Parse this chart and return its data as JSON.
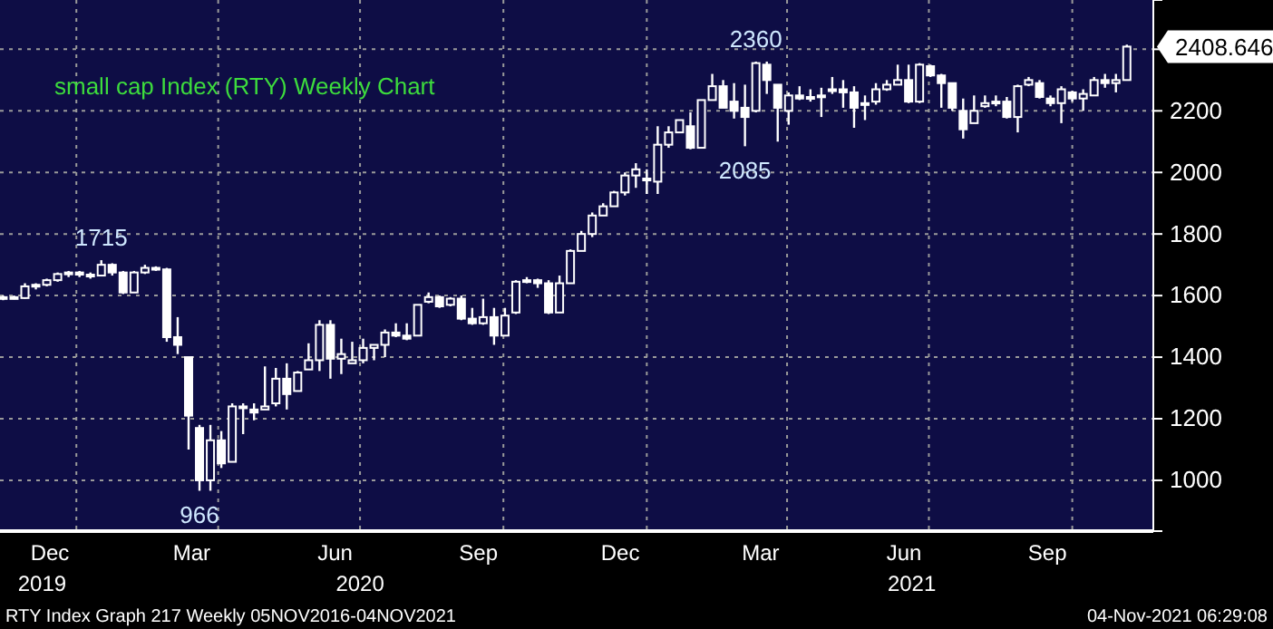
{
  "chart_data": {
    "type": "candlestick",
    "title": "small cap Index (RTY) Weekly Chart",
    "x": [
      "2019-11-15",
      "2019-11-22",
      "2019-11-29",
      "2019-12-06",
      "2019-12-13",
      "2019-12-20",
      "2019-12-27",
      "2020-01-03",
      "2020-01-10",
      "2020-01-17",
      "2020-01-24",
      "2020-01-31",
      "2020-02-07",
      "2020-02-14",
      "2020-02-21",
      "2020-02-28",
      "2020-03-06",
      "2020-03-13",
      "2020-03-20",
      "2020-03-27",
      "2020-04-03",
      "2020-04-10",
      "2020-04-17",
      "2020-04-24",
      "2020-05-01",
      "2020-05-08",
      "2020-05-15",
      "2020-05-22",
      "2020-05-29",
      "2020-06-05",
      "2020-06-12",
      "2020-06-19",
      "2020-06-26",
      "2020-07-03",
      "2020-07-10",
      "2020-07-17",
      "2020-07-24",
      "2020-07-31",
      "2020-08-07",
      "2020-08-14",
      "2020-08-21",
      "2020-08-28",
      "2020-09-04",
      "2020-09-11",
      "2020-09-18",
      "2020-09-25",
      "2020-10-02",
      "2020-10-09",
      "2020-10-16",
      "2020-10-23",
      "2020-10-30",
      "2020-11-06",
      "2020-11-13",
      "2020-11-20",
      "2020-11-27",
      "2020-12-04",
      "2020-12-11",
      "2020-12-18",
      "2020-12-25",
      "2021-01-01",
      "2021-01-08",
      "2021-01-15",
      "2021-01-22",
      "2021-01-29",
      "2021-02-05",
      "2021-02-12",
      "2021-02-19",
      "2021-02-26",
      "2021-03-05",
      "2021-03-12",
      "2021-03-19",
      "2021-03-26",
      "2021-04-02",
      "2021-04-09",
      "2021-04-16",
      "2021-04-23",
      "2021-04-30",
      "2021-05-07",
      "2021-05-14",
      "2021-05-21",
      "2021-05-28",
      "2021-06-04",
      "2021-06-11",
      "2021-06-18",
      "2021-06-25",
      "2021-07-02",
      "2021-07-09",
      "2021-07-16",
      "2021-07-23",
      "2021-07-30",
      "2021-08-06",
      "2021-08-13",
      "2021-08-20",
      "2021-08-27",
      "2021-09-03",
      "2021-09-10",
      "2021-09-17",
      "2021-09-24",
      "2021-10-01",
      "2021-10-08",
      "2021-10-15",
      "2021-10-22",
      "2021-10-29",
      "2021-11-05"
    ],
    "ohlc": [
      [
        1590,
        1600,
        1585,
        1595
      ],
      [
        1595,
        1600,
        1588,
        1592
      ],
      [
        1592,
        1640,
        1590,
        1630
      ],
      [
        1630,
        1640,
        1620,
        1635
      ],
      [
        1635,
        1655,
        1630,
        1650
      ],
      [
        1650,
        1675,
        1645,
        1670
      ],
      [
        1670,
        1680,
        1660,
        1675
      ],
      [
        1675,
        1680,
        1660,
        1668
      ],
      [
        1668,
        1675,
        1655,
        1665
      ],
      [
        1665,
        1715,
        1665,
        1700
      ],
      [
        1700,
        1705,
        1665,
        1675
      ],
      [
        1675,
        1680,
        1605,
        1610
      ],
      [
        1610,
        1680,
        1610,
        1675
      ],
      [
        1675,
        1700,
        1670,
        1690
      ],
      [
        1690,
        1695,
        1680,
        1685
      ],
      [
        1685,
        1690,
        1450,
        1465
      ],
      [
        1465,
        1530,
        1410,
        1440
      ],
      [
        1400,
        1400,
        1100,
        1210
      ],
      [
        1170,
        1180,
        966,
        1000
      ],
      [
        1000,
        1180,
        966,
        1130
      ],
      [
        1130,
        1160,
        1040,
        1055
      ],
      [
        1060,
        1250,
        1060,
        1240
      ],
      [
        1240,
        1250,
        1150,
        1235
      ],
      [
        1230,
        1250,
        1195,
        1220
      ],
      [
        1230,
        1370,
        1230,
        1240
      ],
      [
        1250,
        1365,
        1240,
        1330
      ],
      [
        1330,
        1380,
        1230,
        1280
      ],
      [
        1290,
        1355,
        1290,
        1350
      ],
      [
        1360,
        1445,
        1360,
        1390
      ],
      [
        1390,
        1520,
        1355,
        1505
      ],
      [
        1505,
        1520,
        1330,
        1395
      ],
      [
        1395,
        1460,
        1345,
        1410
      ],
      [
        1380,
        1450,
        1380,
        1390
      ],
      [
        1390,
        1460,
        1380,
        1430
      ],
      [
        1430,
        1440,
        1390,
        1440
      ],
      [
        1440,
        1490,
        1400,
        1480
      ],
      [
        1480,
        1510,
        1465,
        1470
      ],
      [
        1470,
        1510,
        1455,
        1460
      ],
      [
        1470,
        1570,
        1470,
        1570
      ],
      [
        1580,
        1610,
        1575,
        1595
      ],
      [
        1595,
        1600,
        1560,
        1565
      ],
      [
        1570,
        1595,
        1565,
        1590
      ],
      [
        1590,
        1600,
        1520,
        1525
      ],
      [
        1525,
        1560,
        1505,
        1510
      ],
      [
        1510,
        1590,
        1505,
        1530
      ],
      [
        1530,
        1560,
        1440,
        1470
      ],
      [
        1470,
        1560,
        1470,
        1535
      ],
      [
        1545,
        1650,
        1540,
        1645
      ],
      [
        1645,
        1660,
        1640,
        1650
      ],
      [
        1650,
        1655,
        1625,
        1640
      ],
      [
        1640,
        1650,
        1540,
        1545
      ],
      [
        1545,
        1665,
        1545,
        1640
      ],
      [
        1640,
        1750,
        1640,
        1745
      ],
      [
        1745,
        1810,
        1745,
        1800
      ],
      [
        1800,
        1870,
        1790,
        1860
      ],
      [
        1860,
        1900,
        1860,
        1890
      ],
      [
        1890,
        1940,
        1890,
        1935
      ],
      [
        1935,
        2000,
        1925,
        1990
      ],
      [
        1990,
        2030,
        1950,
        2010
      ],
      [
        1980,
        2010,
        1930,
        1975
      ],
      [
        1970,
        2150,
        1930,
        2090
      ],
      [
        2090,
        2150,
        2080,
        2130
      ],
      [
        2130,
        2170,
        2130,
        2170
      ],
      [
        2150,
        2195,
        2075,
        2080
      ],
      [
        2080,
        2235,
        2080,
        2235
      ],
      [
        2235,
        2320,
        2235,
        2280
      ],
      [
        2280,
        2300,
        2210,
        2210
      ],
      [
        2230,
        2290,
        2175,
        2200
      ],
      [
        2210,
        2285,
        2085,
        2180
      ],
      [
        2200,
        2360,
        2195,
        2355
      ],
      [
        2350,
        2360,
        2255,
        2300
      ],
      [
        2285,
        2285,
        2100,
        2210
      ],
      [
        2200,
        2260,
        2155,
        2250
      ],
      [
        2250,
        2280,
        2235,
        2240
      ],
      [
        2240,
        2270,
        2230,
        2245
      ],
      [
        2245,
        2275,
        2180,
        2250
      ],
      [
        2265,
        2310,
        2255,
        2270
      ],
      [
        2270,
        2300,
        2210,
        2260
      ],
      [
        2260,
        2280,
        2145,
        2210
      ],
      [
        2220,
        2250,
        2170,
        2225
      ],
      [
        2230,
        2290,
        2220,
        2270
      ],
      [
        2270,
        2300,
        2265,
        2285
      ],
      [
        2285,
        2350,
        2285,
        2300
      ],
      [
        2300,
        2350,
        2225,
        2230
      ],
      [
        2230,
        2355,
        2225,
        2350
      ],
      [
        2345,
        2350,
        2310,
        2315
      ],
      [
        2315,
        2320,
        2210,
        2290
      ],
      [
        2290,
        2290,
        2200,
        2210
      ],
      [
        2200,
        2240,
        2110,
        2140
      ],
      [
        2160,
        2250,
        2160,
        2200
      ],
      [
        2215,
        2250,
        2210,
        2225
      ],
      [
        2225,
        2250,
        2215,
        2230
      ],
      [
        2230,
        2245,
        2175,
        2180
      ],
      [
        2180,
        2285,
        2130,
        2280
      ],
      [
        2285,
        2310,
        2280,
        2300
      ],
      [
        2290,
        2300,
        2240,
        2245
      ],
      [
        2240,
        2250,
        2215,
        2225
      ],
      [
        2225,
        2280,
        2160,
        2270
      ],
      [
        2260,
        2265,
        2230,
        2240
      ],
      [
        2240,
        2270,
        2200,
        2255
      ],
      [
        2250,
        2310,
        2250,
        2300
      ],
      [
        2300,
        2320,
        2275,
        2290
      ],
      [
        2290,
        2320,
        2260,
        2300
      ],
      [
        2300,
        2415,
        2300,
        2408.646
      ]
    ],
    "color": "#ffffff",
    "xlim": [
      "2019-11-13",
      "2021-11-22"
    ],
    "xticks": [
      {
        "value": "2019-12-15",
        "label": "Dec"
      },
      {
        "value": "2020-01-01",
        "label": null
      },
      {
        "value": "2020-03-15",
        "label": "Mar"
      },
      {
        "value": "2020-04-01",
        "label": null
      },
      {
        "value": "2020-06-15",
        "label": "Jun"
      },
      {
        "value": "2020-07-01",
        "label": null
      },
      {
        "value": "2020-09-15",
        "label": "Sep"
      },
      {
        "value": "2020-10-01",
        "label": null
      },
      {
        "value": "2020-12-15",
        "label": "Dec"
      },
      {
        "value": "2021-01-01",
        "label": null
      },
      {
        "value": "2021-03-15",
        "label": "Mar"
      },
      {
        "value": "2021-04-01",
        "label": null
      },
      {
        "value": "2021-06-15",
        "label": "Jun"
      },
      {
        "value": "2021-07-01",
        "label": null
      },
      {
        "value": "2021-09-15",
        "label": "Sep"
      },
      {
        "value": "2021-10-01",
        "label": null
      }
    ],
    "x2lim": [
      "2019-11-13",
      "2021-11-22"
    ],
    "x2ticks": [
      {
        "value": "2019-12-10",
        "label": "2019"
      },
      {
        "value": "2020-07-01",
        "label": "2020"
      },
      {
        "value": "2021-06-20",
        "label": "2021"
      }
    ],
    "ylim": [
      835,
      2560
    ],
    "yticks": [
      1000,
      1200,
      1400,
      1600,
      1800,
      2000,
      2200,
      {
        "value": 2400,
        "label": null
      }
    ],
    "grid": true,
    "annotations": [
      {
        "text": "1715",
        "x": "2020-01-17",
        "y": 1715
      },
      {
        "text": "966",
        "x": "2020-03-20",
        "y": 966
      },
      {
        "text": "2360",
        "x": "2021-03-12",
        "y": 2360
      },
      {
        "text": "2085",
        "x": "2021-03-05",
        "y": 2085
      },
      "2408.646",
      "RTY Index Graph 217  Weekly 05NOV2016-04NOV2021",
      "04-Nov-2021 06:29:08"
    ]
  }
}
